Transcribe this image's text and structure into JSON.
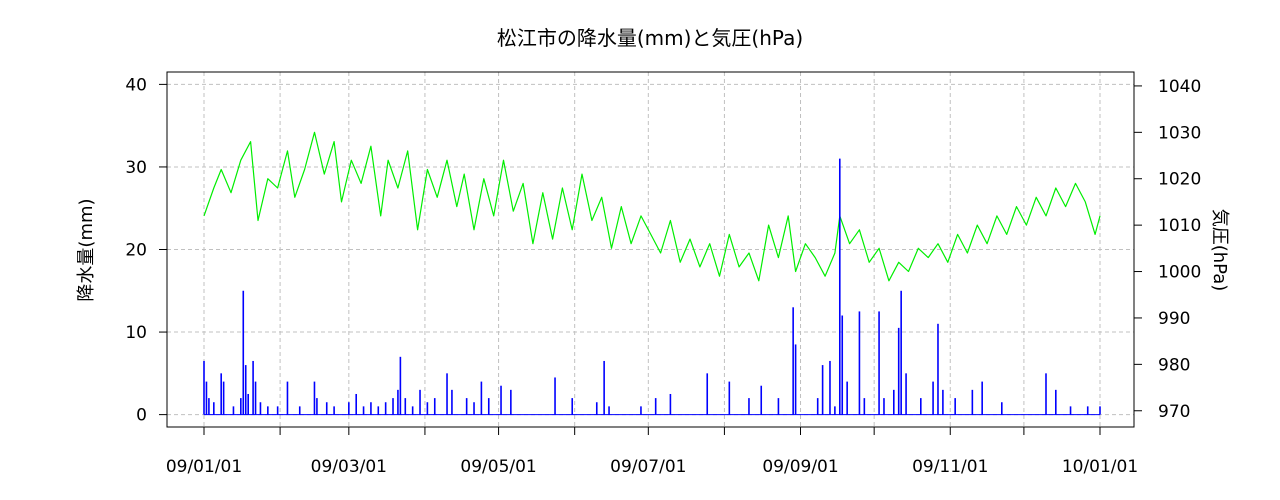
{
  "chart_data": {
    "type": "line",
    "title": "松江市の降水量(mm)と気圧(hPa)",
    "ylabel_left": "降水量(mm)",
    "ylabel_right": "気圧(hPa)",
    "xlabel": "",
    "x_range": [
      "2009-01-01",
      "2010-01-01"
    ],
    "x_ticks": [
      {
        "date": "2009-01-01",
        "label": "09/01/01"
      },
      {
        "date": "2009-03-01",
        "label": "09/03/01"
      },
      {
        "date": "2009-05-01",
        "label": "09/05/01"
      },
      {
        "date": "2009-07-01",
        "label": "09/07/01"
      },
      {
        "date": "2009-09-01",
        "label": "09/09/01"
      },
      {
        "date": "2009-11-01",
        "label": "09/11/01"
      },
      {
        "date": "2010-01-01",
        "label": "10/01/01"
      }
    ],
    "x_minor_ticks": [
      "2009-02-01",
      "2009-04-01",
      "2009-06-01",
      "2009-08-01",
      "2009-10-01",
      "2009-12-01"
    ],
    "ylim_left": [
      -1.5,
      41.5
    ],
    "y_ticks_left": [
      0,
      10,
      20,
      30,
      40
    ],
    "ylim_right": [
      966.5,
      1043
    ],
    "y_ticks_right": [
      970,
      980,
      990,
      1000,
      1010,
      1020,
      1030,
      1040
    ],
    "grid": true,
    "colors": {
      "precipitation": "#0000ff",
      "pressure": "#00ee00",
      "grid": "#c0c0c0"
    },
    "series": [
      {
        "type": "bar",
        "axis": "left",
        "points": [
          [
            "2009-01-01",
            6.5
          ],
          [
            "2009-01-02",
            4
          ],
          [
            "2009-01-03",
            2
          ],
          [
            "2009-01-05",
            1.5
          ],
          [
            "2009-01-08",
            5
          ],
          [
            "2009-01-09",
            4
          ],
          [
            "2009-01-13",
            1
          ],
          [
            "2009-01-16",
            2
          ],
          [
            "2009-01-17",
            15
          ],
          [
            "2009-01-18",
            6
          ],
          [
            "2009-01-19",
            2.5
          ],
          [
            "2009-01-21",
            6.5
          ],
          [
            "2009-01-22",
            4
          ],
          [
            "2009-01-24",
            1.5
          ],
          [
            "2009-01-27",
            1
          ],
          [
            "2009-01-31",
            1
          ],
          [
            "2009-02-04",
            4
          ],
          [
            "2009-02-09",
            1
          ],
          [
            "2009-02-15",
            4
          ],
          [
            "2009-02-16",
            2
          ],
          [
            "2009-02-20",
            1.5
          ],
          [
            "2009-02-23",
            1
          ],
          [
            "2009-03-01",
            1.5
          ],
          [
            "2009-03-04",
            2.5
          ],
          [
            "2009-03-07",
            1
          ],
          [
            "2009-03-10",
            1.5
          ],
          [
            "2009-03-13",
            1
          ],
          [
            "2009-03-16",
            1.5
          ],
          [
            "2009-03-19",
            2
          ],
          [
            "2009-03-21",
            3
          ],
          [
            "2009-03-22",
            7
          ],
          [
            "2009-03-24",
            2
          ],
          [
            "2009-03-27",
            1
          ],
          [
            "2009-03-30",
            3
          ],
          [
            "2009-04-02",
            1.5
          ],
          [
            "2009-04-05",
            2
          ],
          [
            "2009-04-10",
            5
          ],
          [
            "2009-04-12",
            3
          ],
          [
            "2009-04-18",
            2
          ],
          [
            "2009-04-21",
            1.5
          ],
          [
            "2009-04-24",
            4
          ],
          [
            "2009-04-27",
            2
          ],
          [
            "2009-05-02",
            3.5
          ],
          [
            "2009-05-06",
            3
          ],
          [
            "2009-05-24",
            4.5
          ],
          [
            "2009-05-31",
            2
          ],
          [
            "2009-06-10",
            1.5
          ],
          [
            "2009-06-13",
            6.5
          ],
          [
            "2009-06-15",
            1
          ],
          [
            "2009-06-28",
            1
          ],
          [
            "2009-07-04",
            2
          ],
          [
            "2009-07-10",
            2.5
          ],
          [
            "2009-07-25",
            5
          ],
          [
            "2009-08-03",
            4
          ],
          [
            "2009-08-11",
            2
          ],
          [
            "2009-08-16",
            3.5
          ],
          [
            "2009-08-23",
            2
          ],
          [
            "2009-08-29",
            13
          ],
          [
            "2009-08-30",
            8.5
          ],
          [
            "2009-09-08",
            2
          ],
          [
            "2009-09-10",
            6
          ],
          [
            "2009-09-13",
            6.5
          ],
          [
            "2009-09-15",
            1
          ],
          [
            "2009-09-17",
            31
          ],
          [
            "2009-09-18",
            12
          ],
          [
            "2009-09-20",
            4
          ],
          [
            "2009-09-25",
            12.5
          ],
          [
            "2009-09-27",
            2
          ],
          [
            "2009-10-03",
            12.5
          ],
          [
            "2009-10-05",
            2
          ],
          [
            "2009-10-09",
            3
          ],
          [
            "2009-10-11",
            10.5
          ],
          [
            "2009-10-12",
            15
          ],
          [
            "2009-10-14",
            5
          ],
          [
            "2009-10-20",
            2
          ],
          [
            "2009-10-25",
            4
          ],
          [
            "2009-10-27",
            11
          ],
          [
            "2009-10-29",
            3
          ],
          [
            "2009-11-03",
            2
          ],
          [
            "2009-11-10",
            3
          ],
          [
            "2009-11-14",
            4
          ],
          [
            "2009-11-22",
            1.5
          ],
          [
            "2009-12-10",
            5
          ],
          [
            "2009-12-14",
            3
          ],
          [
            "2009-12-20",
            1
          ],
          [
            "2009-12-27",
            1
          ],
          [
            "2010-01-01",
            1
          ]
        ]
      },
      {
        "type": "line",
        "axis": "right",
        "points": [
          [
            "2009-01-01",
            1012
          ],
          [
            "2009-01-05",
            1018
          ],
          [
            "2009-01-08",
            1022
          ],
          [
            "2009-01-12",
            1017
          ],
          [
            "2009-01-16",
            1024
          ],
          [
            "2009-01-20",
            1028
          ],
          [
            "2009-01-23",
            1011
          ],
          [
            "2009-01-27",
            1020
          ],
          [
            "2009-01-31",
            1018
          ],
          [
            "2009-02-04",
            1026
          ],
          [
            "2009-02-07",
            1016
          ],
          [
            "2009-02-11",
            1022
          ],
          [
            "2009-02-15",
            1030
          ],
          [
            "2009-02-19",
            1021
          ],
          [
            "2009-02-23",
            1028
          ],
          [
            "2009-02-26",
            1015
          ],
          [
            "2009-03-02",
            1024
          ],
          [
            "2009-03-06",
            1019
          ],
          [
            "2009-03-10",
            1027
          ],
          [
            "2009-03-14",
            1012
          ],
          [
            "2009-03-17",
            1024
          ],
          [
            "2009-03-21",
            1018
          ],
          [
            "2009-03-25",
            1026
          ],
          [
            "2009-03-29",
            1009
          ],
          [
            "2009-04-02",
            1022
          ],
          [
            "2009-04-06",
            1016
          ],
          [
            "2009-04-10",
            1024
          ],
          [
            "2009-04-14",
            1014
          ],
          [
            "2009-04-17",
            1021
          ],
          [
            "2009-04-21",
            1009
          ],
          [
            "2009-04-25",
            1020
          ],
          [
            "2009-04-29",
            1012
          ],
          [
            "2009-05-03",
            1024
          ],
          [
            "2009-05-07",
            1013
          ],
          [
            "2009-05-11",
            1019
          ],
          [
            "2009-05-15",
            1006
          ],
          [
            "2009-05-19",
            1017
          ],
          [
            "2009-05-23",
            1007
          ],
          [
            "2009-05-27",
            1018
          ],
          [
            "2009-05-31",
            1009
          ],
          [
            "2009-06-04",
            1021
          ],
          [
            "2009-06-08",
            1011
          ],
          [
            "2009-06-12",
            1016
          ],
          [
            "2009-06-16",
            1005
          ],
          [
            "2009-06-20",
            1014
          ],
          [
            "2009-06-24",
            1006
          ],
          [
            "2009-06-28",
            1012
          ],
          [
            "2009-07-02",
            1008
          ],
          [
            "2009-07-06",
            1004
          ],
          [
            "2009-07-10",
            1011
          ],
          [
            "2009-07-14",
            1002
          ],
          [
            "2009-07-18",
            1007
          ],
          [
            "2009-07-22",
            1001
          ],
          [
            "2009-07-26",
            1006
          ],
          [
            "2009-07-30",
            999
          ],
          [
            "2009-08-03",
            1008
          ],
          [
            "2009-08-07",
            1001
          ],
          [
            "2009-08-11",
            1004
          ],
          [
            "2009-08-15",
            998
          ],
          [
            "2009-08-19",
            1010
          ],
          [
            "2009-08-23",
            1003
          ],
          [
            "2009-08-27",
            1012
          ],
          [
            "2009-08-30",
            1000
          ],
          [
            "2009-09-03",
            1006
          ],
          [
            "2009-09-07",
            1003
          ],
          [
            "2009-09-11",
            999
          ],
          [
            "2009-09-15",
            1004
          ],
          [
            "2009-09-17",
            1012
          ],
          [
            "2009-09-21",
            1006
          ],
          [
            "2009-09-25",
            1009
          ],
          [
            "2009-09-29",
            1002
          ],
          [
            "2009-10-03",
            1005
          ],
          [
            "2009-10-07",
            998
          ],
          [
            "2009-10-11",
            1002
          ],
          [
            "2009-10-15",
            1000
          ],
          [
            "2009-10-19",
            1005
          ],
          [
            "2009-10-23",
            1003
          ],
          [
            "2009-10-27",
            1006
          ],
          [
            "2009-10-31",
            1002
          ],
          [
            "2009-11-04",
            1008
          ],
          [
            "2009-11-08",
            1004
          ],
          [
            "2009-11-12",
            1010
          ],
          [
            "2009-11-16",
            1006
          ],
          [
            "2009-11-20",
            1012
          ],
          [
            "2009-11-24",
            1008
          ],
          [
            "2009-11-28",
            1014
          ],
          [
            "2009-12-02",
            1010
          ],
          [
            "2009-12-06",
            1016
          ],
          [
            "2009-12-10",
            1012
          ],
          [
            "2009-12-14",
            1018
          ],
          [
            "2009-12-18",
            1014
          ],
          [
            "2009-12-22",
            1019
          ],
          [
            "2009-12-26",
            1015
          ],
          [
            "2009-12-30",
            1008
          ],
          [
            "2010-01-01",
            1012
          ]
        ]
      }
    ]
  }
}
